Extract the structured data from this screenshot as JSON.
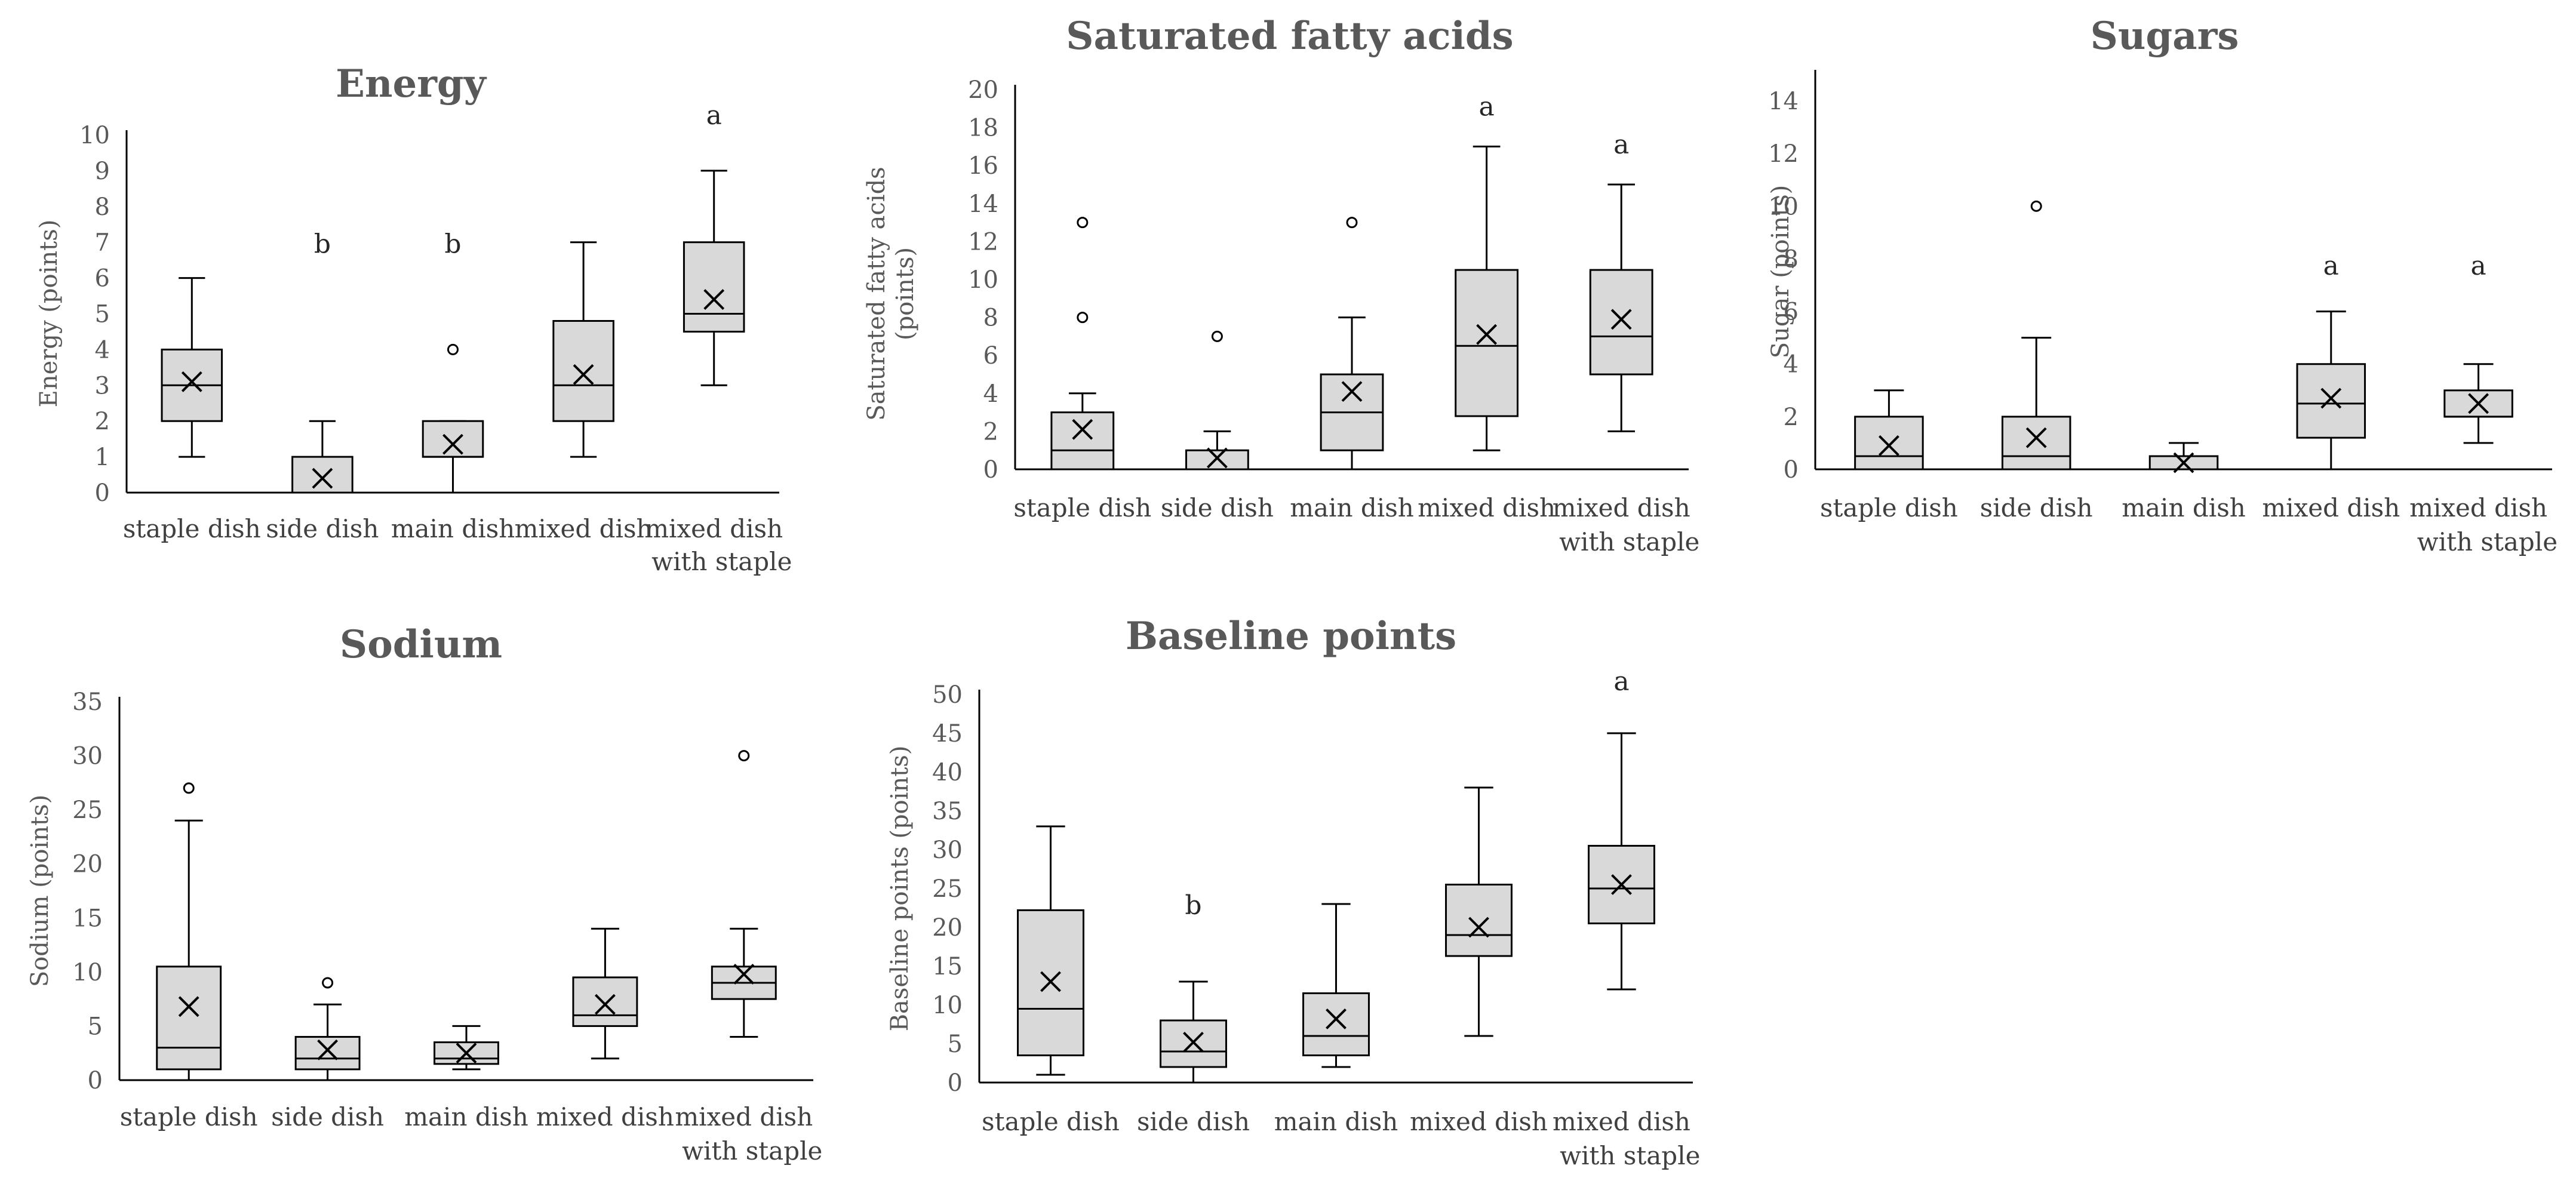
{
  "chart_data": [
    {
      "type": "boxplot",
      "title": "Energy",
      "xlabel": "",
      "ylabel": "Energy (points)",
      "ylim": [
        0,
        10
      ],
      "yticks": [
        0,
        1,
        2,
        3,
        4,
        5,
        6,
        7,
        8,
        9,
        10
      ],
      "categories": [
        "staple dish",
        "side dish",
        "main dish",
        "mixed dish",
        "mixed dish\nwith staple"
      ],
      "grid": false,
      "boxes": [
        {
          "category": "staple dish",
          "min": 1,
          "q1": 2,
          "median": 3,
          "q3": 4,
          "max": 6,
          "mean": 3.1,
          "outliers": [],
          "label": ""
        },
        {
          "category": "side dish",
          "min": 0,
          "q1": 0,
          "median": 0,
          "q3": 1,
          "max": 2,
          "mean": 0.4,
          "outliers": [],
          "label": "b"
        },
        {
          "category": "main dish",
          "min": 0,
          "q1": 1,
          "median": 1,
          "q3": 2,
          "max": 2,
          "mean": 1.35,
          "outliers": [
            4
          ],
          "label": "b"
        },
        {
          "category": "mixed dish",
          "min": 1,
          "q1": 2,
          "median": 3,
          "q3": 4.8,
          "max": 7,
          "mean": 3.3,
          "outliers": [],
          "label": ""
        },
        {
          "category": "mixed dish with staple",
          "min": 3,
          "q1": 4.5,
          "median": 5,
          "q3": 7,
          "max": 9,
          "mean": 5.4,
          "outliers": [],
          "label": "a"
        }
      ]
    },
    {
      "type": "boxplot",
      "title": "Saturated fatty acids",
      "xlabel": "",
      "ylabel": "Saturated fatty acids\n(points)",
      "ylim": [
        0,
        20
      ],
      "yticks": [
        0,
        2,
        4,
        6,
        8,
        10,
        12,
        14,
        16,
        18,
        20
      ],
      "categories": [
        "staple dish",
        "side dish",
        "main dish",
        "mixed dish",
        "mixed dish\nwith staple"
      ],
      "grid": false,
      "boxes": [
        {
          "category": "staple dish",
          "min": 0,
          "q1": 0,
          "median": 1,
          "q3": 3,
          "max": 4,
          "mean": 2.1,
          "outliers": [
            8,
            13
          ],
          "label": ""
        },
        {
          "category": "side dish",
          "min": 0,
          "q1": 0,
          "median": 0,
          "q3": 1,
          "max": 2,
          "mean": 0.6,
          "outliers": [
            7
          ],
          "label": ""
        },
        {
          "category": "main dish",
          "min": 0,
          "q1": 1,
          "median": 3,
          "q3": 5,
          "max": 8,
          "mean": 4.1,
          "outliers": [
            13
          ],
          "label": ""
        },
        {
          "category": "mixed dish",
          "min": 1,
          "q1": 2.8,
          "median": 6.5,
          "q3": 10.5,
          "max": 17,
          "mean": 7.1,
          "outliers": [],
          "label": "a"
        },
        {
          "category": "mixed dish with staple",
          "min": 2,
          "q1": 5,
          "median": 7,
          "q3": 10.5,
          "max": 15,
          "mean": 7.9,
          "outliers": [],
          "label": "a"
        }
      ]
    },
    {
      "type": "boxplot",
      "title": "Sugars",
      "xlabel": "",
      "ylabel": "Sugar (points)",
      "ylim": [
        0,
        15
      ],
      "yticks": [
        0,
        2,
        4,
        6,
        8,
        10,
        12,
        14
      ],
      "categories": [
        "staple dish",
        "side dish",
        "main dish",
        "mixed dish",
        "mixed dish\nwith staple"
      ],
      "grid": false,
      "boxes": [
        {
          "category": "staple dish",
          "min": 0,
          "q1": 0,
          "median": 0.5,
          "q3": 2,
          "max": 3,
          "mean": 0.9,
          "outliers": [],
          "label": ""
        },
        {
          "category": "side dish",
          "min": 0,
          "q1": 0,
          "median": 0.5,
          "q3": 2,
          "max": 5,
          "mean": 1.2,
          "outliers": [
            10
          ],
          "label": ""
        },
        {
          "category": "main dish",
          "min": 0,
          "q1": 0,
          "median": 0,
          "q3": 0.5,
          "max": 1,
          "mean": 0.25,
          "outliers": [],
          "label": ""
        },
        {
          "category": "mixed dish",
          "min": 0,
          "q1": 1.2,
          "median": 2.5,
          "q3": 4,
          "max": 6,
          "mean": 2.7,
          "outliers": [],
          "label": "a"
        },
        {
          "category": "mixed dish with staple",
          "min": 1,
          "q1": 2,
          "median": 2,
          "q3": 3,
          "max": 4,
          "mean": 2.5,
          "outliers": [],
          "label": "a"
        }
      ]
    },
    {
      "type": "boxplot",
      "title": "Sodium",
      "xlabel": "",
      "ylabel": "Sodium (points)",
      "ylim": [
        0,
        35
      ],
      "yticks": [
        0,
        5,
        10,
        15,
        20,
        25,
        30,
        35
      ],
      "categories": [
        "staple dish",
        "side dish",
        "main dish",
        "mixed dish",
        "mixed dish\nwith staple"
      ],
      "grid": false,
      "boxes": [
        {
          "category": "staple dish",
          "min": 0,
          "q1": 1,
          "median": 3,
          "q3": 10.5,
          "max": 24,
          "mean": 6.8,
          "outliers": [
            27
          ],
          "label": ""
        },
        {
          "category": "side dish",
          "min": 0,
          "q1": 1,
          "median": 2,
          "q3": 4,
          "max": 7,
          "mean": 2.8,
          "outliers": [
            9
          ],
          "label": ""
        },
        {
          "category": "main dish",
          "min": 1,
          "q1": 1.5,
          "median": 2,
          "q3": 3.5,
          "max": 5,
          "mean": 2.5,
          "outliers": [],
          "label": ""
        },
        {
          "category": "mixed dish",
          "min": 2,
          "q1": 5,
          "median": 6,
          "q3": 9.5,
          "max": 14,
          "mean": 7,
          "outliers": [],
          "label": ""
        },
        {
          "category": "mixed dish with staple",
          "min": 4,
          "q1": 7.5,
          "median": 9,
          "q3": 10.5,
          "max": 14,
          "mean": 9.8,
          "outliers": [
            30
          ],
          "label": ""
        }
      ]
    },
    {
      "type": "boxplot",
      "title": "Baseline points",
      "xlabel": "",
      "ylabel": "Baseline points (points)",
      "ylim": [
        0,
        50
      ],
      "yticks": [
        0,
        5,
        10,
        15,
        20,
        25,
        30,
        35,
        40,
        45,
        50
      ],
      "categories": [
        "staple dish",
        "side dish",
        "main dish",
        "mixed dish",
        "mixed dish\nwith staple"
      ],
      "grid": false,
      "boxes": [
        {
          "category": "staple dish",
          "min": 1,
          "q1": 3.5,
          "median": 9.5,
          "q3": 22.2,
          "max": 33,
          "mean": 13,
          "outliers": [],
          "label": ""
        },
        {
          "category": "side dish",
          "min": 0,
          "q1": 2,
          "median": 4,
          "q3": 8,
          "max": 13,
          "mean": 5.2,
          "outliers": [],
          "label": "b"
        },
        {
          "category": "main dish",
          "min": 2,
          "q1": 3.5,
          "median": 6,
          "q3": 11.5,
          "max": 23,
          "mean": 8.2,
          "outliers": [],
          "label": ""
        },
        {
          "category": "mixed dish",
          "min": 6,
          "q1": 16.3,
          "median": 19,
          "q3": 25.5,
          "max": 38,
          "mean": 20,
          "outliers": [],
          "label": ""
        },
        {
          "category": "mixed dish with staple",
          "min": 12,
          "q1": 20.5,
          "median": 25,
          "q3": 30.5,
          "max": 45,
          "mean": 25.5,
          "outliers": [],
          "label": "a"
        }
      ]
    }
  ]
}
